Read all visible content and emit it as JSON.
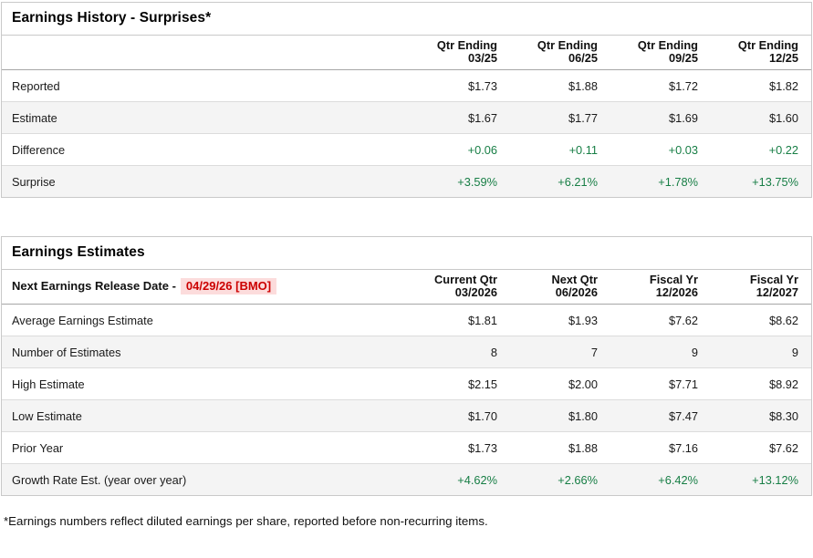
{
  "colors": {
    "positive_value_green": "#177e45",
    "release_date_red": "#cc0000",
    "release_date_bg": "#fcdcdc",
    "alt_row_bg": "#f4f4f4",
    "table_border": "#c9c9c9"
  },
  "history": {
    "title": "Earnings History - Surprises*",
    "columns": [
      {
        "top": "Qtr Ending",
        "bottom": "03/25"
      },
      {
        "top": "Qtr Ending",
        "bottom": "06/25"
      },
      {
        "top": "Qtr Ending",
        "bottom": "09/25"
      },
      {
        "top": "Qtr Ending",
        "bottom": "12/25"
      }
    ],
    "rows": [
      {
        "label": "Reported",
        "values": [
          "$1.73",
          "$1.88",
          "$1.72",
          "$1.82"
        ]
      },
      {
        "label": "Estimate",
        "values": [
          "$1.67",
          "$1.77",
          "$1.69",
          "$1.60"
        ]
      },
      {
        "label": "Difference",
        "values": [
          "+0.06",
          "+0.11",
          "+0.03",
          "+0.22"
        ],
        "value_color": "green"
      },
      {
        "label": "Surprise",
        "values": [
          "+3.59%",
          "+6.21%",
          "+1.78%",
          "+13.75%"
        ],
        "value_color": "green"
      }
    ]
  },
  "estimates": {
    "title": "Earnings Estimates",
    "release": {
      "label": "Next Earnings Release Date -",
      "date": "04/29/26 [BMO]"
    },
    "columns": [
      {
        "top": "Current Qtr",
        "bottom": "03/2026"
      },
      {
        "top": "Next Qtr",
        "bottom": "06/2026"
      },
      {
        "top": "Fiscal Yr",
        "bottom": "12/2026"
      },
      {
        "top": "Fiscal Yr",
        "bottom": "12/2027"
      }
    ],
    "rows": [
      {
        "label": "Average Earnings Estimate",
        "values": [
          "$1.81",
          "$1.93",
          "$7.62",
          "$8.62"
        ]
      },
      {
        "label": "Number of Estimates",
        "values": [
          "8",
          "7",
          "9",
          "9"
        ]
      },
      {
        "label": "High Estimate",
        "values": [
          "$2.15",
          "$2.00",
          "$7.71",
          "$8.92"
        ]
      },
      {
        "label": "Low Estimate",
        "values": [
          "$1.70",
          "$1.80",
          "$7.47",
          "$8.30"
        ]
      },
      {
        "label": "Prior Year",
        "values": [
          "$1.73",
          "$1.88",
          "$7.16",
          "$7.62"
        ]
      },
      {
        "label": "Growth Rate Est. (year over year)",
        "values": [
          "+4.62%",
          "+2.66%",
          "+6.42%",
          "+13.12%"
        ],
        "value_color": "green"
      }
    ]
  },
  "footnote": "*Earnings numbers reflect diluted earnings per share, reported before non-recurring items."
}
